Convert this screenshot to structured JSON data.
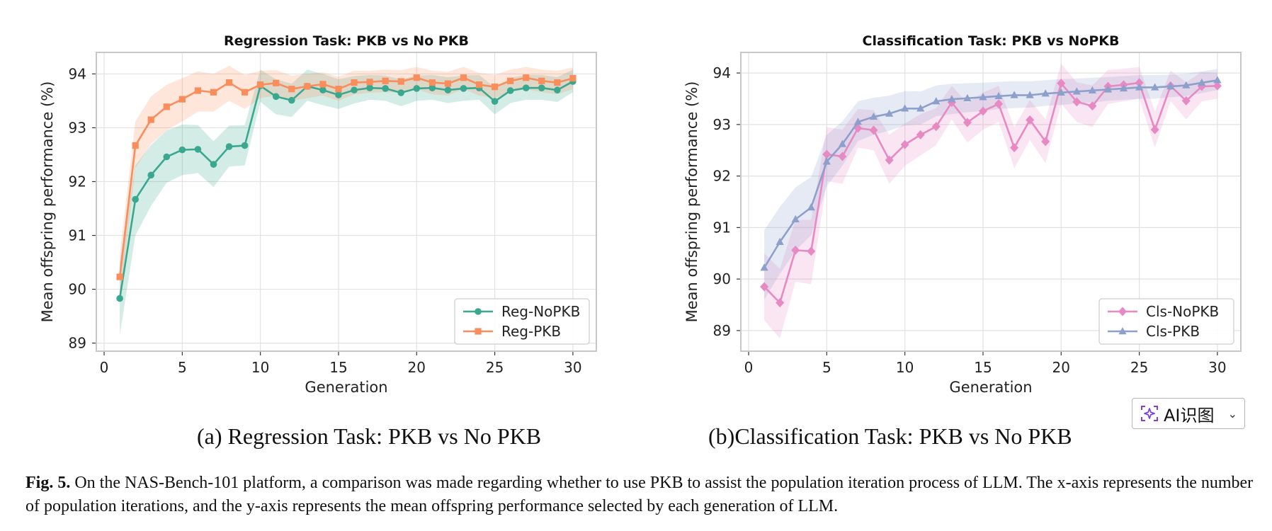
{
  "chart_data": [
    {
      "type": "line",
      "title": "Regression Task: PKB vs No PKB",
      "xlabel": "Generation",
      "ylabel": "Mean offspring performance (%)",
      "xlim": [
        -0.5,
        31.5
      ],
      "ylim": [
        88.85,
        94.4
      ],
      "xticks": [
        0,
        5,
        10,
        15,
        20,
        25,
        30
      ],
      "yticks": [
        89,
        90,
        91,
        92,
        93,
        94
      ],
      "legend_position": "lower-right",
      "grid": true,
      "x": [
        1,
        2,
        3,
        4,
        5,
        6,
        7,
        8,
        9,
        10,
        11,
        12,
        13,
        14,
        15,
        16,
        17,
        18,
        19,
        20,
        21,
        22,
        23,
        24,
        25,
        26,
        27,
        28,
        29,
        30
      ],
      "series": [
        {
          "name": "Reg-NoPKB",
          "color": "#3aa88f",
          "marker": "circle",
          "values": [
            89.83,
            91.67,
            92.12,
            92.46,
            92.59,
            92.6,
            92.32,
            92.65,
            92.67,
            93.78,
            93.58,
            93.51,
            93.77,
            93.7,
            93.61,
            93.7,
            93.74,
            93.73,
            93.65,
            93.73,
            93.74,
            93.7,
            93.73,
            93.74,
            93.49,
            93.69,
            93.74,
            93.74,
            93.7,
            93.86
          ],
          "lower": [
            89.15,
            91.0,
            91.55,
            91.98,
            92.12,
            92.16,
            91.9,
            92.28,
            92.3,
            93.48,
            93.25,
            93.2,
            93.5,
            93.42,
            93.35,
            93.45,
            93.52,
            93.5,
            93.4,
            93.5,
            93.52,
            93.46,
            93.5,
            93.52,
            93.25,
            93.46,
            93.52,
            93.52,
            93.48,
            93.66
          ],
          "upper": [
            90.5,
            92.3,
            92.68,
            92.95,
            93.06,
            93.05,
            92.75,
            93.04,
            93.05,
            94.08,
            93.9,
            93.82,
            94.08,
            94.0,
            93.9,
            93.96,
            93.98,
            93.97,
            93.9,
            93.97,
            93.98,
            93.94,
            93.97,
            93.98,
            93.75,
            93.93,
            93.98,
            93.98,
            93.94,
            94.08
          ]
        },
        {
          "name": "Reg-PKB",
          "color": "#f98d5c",
          "marker": "square",
          "values": [
            90.23,
            92.67,
            93.15,
            93.39,
            93.53,
            93.69,
            93.66,
            93.84,
            93.66,
            93.8,
            93.83,
            93.72,
            93.77,
            93.81,
            93.72,
            93.84,
            93.85,
            93.87,
            93.86,
            93.93,
            93.84,
            93.82,
            93.93,
            93.8,
            93.76,
            93.87,
            93.93,
            93.87,
            93.84,
            93.92
          ],
          "lower": [
            89.8,
            92.25,
            92.7,
            92.95,
            93.12,
            93.3,
            93.3,
            93.5,
            93.35,
            93.55,
            93.6,
            93.5,
            93.55,
            93.6,
            93.5,
            93.62,
            93.65,
            93.66,
            93.65,
            93.72,
            93.62,
            93.6,
            93.72,
            93.6,
            93.55,
            93.66,
            93.72,
            93.66,
            93.62,
            93.72
          ],
          "upper": [
            90.65,
            93.12,
            93.58,
            93.8,
            93.92,
            94.05,
            94.0,
            94.15,
            93.98,
            94.06,
            94.07,
            93.97,
            94.0,
            94.03,
            93.95,
            94.06,
            94.06,
            94.08,
            94.07,
            94.13,
            94.06,
            94.04,
            94.13,
            94.02,
            93.98,
            94.08,
            94.13,
            94.08,
            94.06,
            94.12
          ]
        }
      ]
    },
    {
      "type": "line",
      "title": "Classification Task: PKB vs NoPKB",
      "xlabel": "Generation",
      "ylabel": "Mean offspring performance (%)",
      "xlim": [
        -0.5,
        31.5
      ],
      "ylim": [
        88.6,
        94.4
      ],
      "xticks": [
        0,
        5,
        10,
        15,
        20,
        25,
        30
      ],
      "yticks": [
        89,
        90,
        91,
        92,
        93,
        94
      ],
      "legend_position": "lower-right",
      "grid": true,
      "x": [
        1,
        2,
        3,
        4,
        5,
        6,
        7,
        8,
        9,
        10,
        11,
        12,
        13,
        14,
        15,
        16,
        17,
        18,
        19,
        20,
        21,
        22,
        23,
        24,
        25,
        26,
        27,
        28,
        29,
        30
      ],
      "series": [
        {
          "name": "Cls-NoPKB",
          "color": "#e78ac3",
          "marker": "diamond",
          "values": [
            89.85,
            89.54,
            90.56,
            90.54,
            92.42,
            92.38,
            92.93,
            92.89,
            92.31,
            92.61,
            92.8,
            92.96,
            93.43,
            93.04,
            93.26,
            93.4,
            92.55,
            93.09,
            92.67,
            93.8,
            93.44,
            93.36,
            93.74,
            93.77,
            93.81,
            92.9,
            93.75,
            93.46,
            93.74,
            93.75
          ],
          "lower": [
            89.2,
            88.85,
            89.95,
            89.9,
            91.9,
            91.85,
            92.55,
            92.5,
            91.85,
            92.2,
            92.4,
            92.6,
            93.1,
            92.65,
            92.9,
            93.05,
            92.15,
            92.7,
            92.25,
            93.4,
            93.05,
            92.95,
            93.4,
            93.45,
            93.5,
            92.55,
            93.45,
            93.1,
            93.45,
            93.5
          ],
          "upper": [
            90.5,
            90.2,
            91.15,
            91.15,
            92.95,
            92.9,
            93.3,
            93.28,
            92.8,
            93.02,
            93.2,
            93.32,
            93.75,
            93.42,
            93.62,
            93.75,
            92.95,
            93.48,
            93.1,
            94.18,
            93.82,
            93.76,
            94.06,
            94.08,
            94.12,
            93.25,
            94.05,
            93.82,
            94.02,
            94.0
          ]
        },
        {
          "name": "Cls-PKB",
          "color": "#8da0cb",
          "marker": "triangle",
          "values": [
            90.22,
            90.72,
            91.16,
            91.39,
            92.28,
            92.62,
            93.05,
            93.15,
            93.21,
            93.31,
            93.31,
            93.45,
            93.49,
            93.51,
            93.53,
            93.55,
            93.57,
            93.57,
            93.6,
            93.62,
            93.64,
            93.66,
            93.68,
            93.7,
            93.72,
            93.72,
            93.74,
            93.76,
            93.81,
            93.86
          ],
          "lower": [
            89.6,
            90.1,
            90.55,
            90.85,
            91.8,
            92.2,
            92.68,
            92.8,
            92.88,
            92.98,
            93.0,
            93.16,
            93.2,
            93.24,
            93.26,
            93.3,
            93.32,
            93.33,
            93.36,
            93.38,
            93.41,
            93.43,
            93.46,
            93.48,
            93.5,
            93.5,
            93.53,
            93.55,
            93.61,
            93.67
          ],
          "upper": [
            90.95,
            91.4,
            91.78,
            91.98,
            92.8,
            93.06,
            93.45,
            93.52,
            93.56,
            93.65,
            93.64,
            93.76,
            93.79,
            93.8,
            93.81,
            93.83,
            93.84,
            93.84,
            93.86,
            93.88,
            93.89,
            93.91,
            93.92,
            93.94,
            93.96,
            93.96,
            93.97,
            93.99,
            94.03,
            94.08
          ]
        }
      ]
    }
  ],
  "subcaptions": {
    "a": "(a) Regression Task: PKB vs No PKB",
    "b": "(b)Classification Task: PKB vs No PKB"
  },
  "figure_caption": {
    "label": "Fig. 5.",
    "text": "On the NAS-Bench-101 platform, a comparison was made regarding whether to use PKB to assist the population iteration process of LLM. The x-axis represents the number of population iterations, and the y-axis represents the mean offspring performance selected by each generation of LLM."
  },
  "ai_button": {
    "label": "AI识图",
    "icon": "sparkle-scan-icon",
    "chevron": "chevron-down-icon",
    "accent": "#7b3fe4"
  }
}
